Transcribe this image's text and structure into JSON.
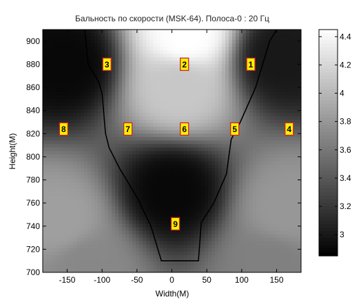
{
  "chart_data": {
    "type": "heatmap",
    "title": "Бальность по скорости (MSK-64). Полоса-0 : 20 Гц",
    "xlabel": "Width(M)",
    "ylabel": "Height(M)",
    "xlim": [
      -185,
      185
    ],
    "ylim": [
      700,
      910
    ],
    "xticks": [
      -150,
      -100,
      -50,
      0,
      50,
      100,
      150
    ],
    "yticks": [
      700,
      720,
      740,
      760,
      780,
      800,
      820,
      840,
      860,
      880,
      900
    ],
    "colorbar": {
      "range": [
        2.85,
        4.45
      ],
      "ticks": [
        3,
        3.2,
        3.4,
        3.6,
        3.8,
        4,
        4.2,
        4.4
      ],
      "colormap": "gray"
    },
    "field_peaks": [
      {
        "x": 20,
        "y": 905,
        "value": 4.45
      },
      {
        "x": 10,
        "y": 860,
        "value": 4.1
      },
      {
        "x": -160,
        "y": 745,
        "value": 3.85
      },
      {
        "x": 165,
        "y": 755,
        "value": 3.8
      },
      {
        "x": -120,
        "y": 705,
        "value": 3.7
      },
      {
        "x": 140,
        "y": 705,
        "value": 3.65
      },
      {
        "x": 0,
        "y": 770,
        "value": 2.9
      },
      {
        "x": -150,
        "y": 880,
        "value": 2.9
      },
      {
        "x": 155,
        "y": 885,
        "value": 3.0
      }
    ],
    "contour": {
      "level_color": "#000000",
      "points": [
        [
          -125,
          910
        ],
        [
          -120,
          880
        ],
        [
          -105,
          865
        ],
        [
          -100,
          855
        ],
        [
          -95,
          820
        ],
        [
          -90,
          808
        ],
        [
          -75,
          790
        ],
        [
          -50,
          765
        ],
        [
          -30,
          740
        ],
        [
          -15,
          710
        ],
        [
          38,
          710
        ],
        [
          42,
          743
        ],
        [
          60,
          760
        ],
        [
          78,
          785
        ],
        [
          85,
          815
        ],
        [
          98,
          830
        ],
        [
          120,
          860
        ],
        [
          140,
          900
        ],
        [
          150,
          910
        ]
      ]
    },
    "markers": [
      {
        "label": "1",
        "x": 113,
        "y": 880
      },
      {
        "label": "2",
        "x": 18,
        "y": 880
      },
      {
        "label": "3",
        "x": -93,
        "y": 880
      },
      {
        "label": "4",
        "x": 168,
        "y": 824
      },
      {
        "label": "5",
        "x": 90,
        "y": 824
      },
      {
        "label": "6",
        "x": 18,
        "y": 824
      },
      {
        "label": "7",
        "x": -63,
        "y": 824
      },
      {
        "label": "8",
        "x": -155,
        "y": 824
      },
      {
        "label": "9",
        "x": 5,
        "y": 742
      }
    ]
  }
}
